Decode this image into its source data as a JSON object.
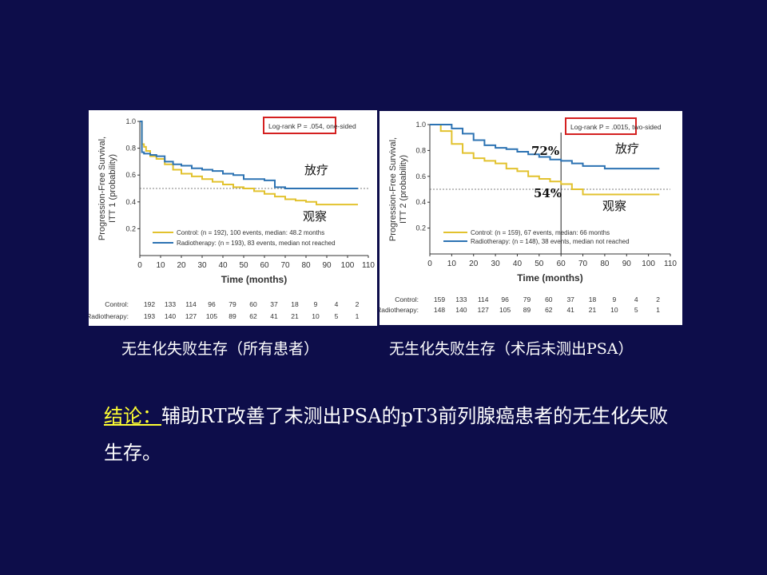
{
  "slide": {
    "caption_left": "无生化失败生存（所有患者）",
    "caption_right": "无生化失败生存（术后未测出PSA）",
    "conclusion_label": "结论：",
    "conclusion_text": "辅助RT改善了未测出PSA的pT3前列腺癌患者的无生化失败生存。"
  },
  "colors": {
    "background": "#0d0d4a",
    "control": "#e2c22e",
    "radiotherapy": "#2d73b3",
    "logrank_box": "#d42020",
    "conclusion_label": "#ffff33"
  },
  "chart_data": [
    {
      "type": "line",
      "step": true,
      "ylabel": "Progression-Free Survival, ITT 1 (probability)",
      "xlabel": "Time (months)",
      "xlim": [
        0,
        110
      ],
      "ylim": [
        0,
        1.0
      ],
      "xticks": [
        0,
        10,
        20,
        30,
        40,
        50,
        60,
        70,
        80,
        90,
        100,
        110
      ],
      "yticks": [
        0.2,
        0.4,
        0.6,
        0.8,
        1.0
      ],
      "reference_line_y": 0.5,
      "annotation": "Log-rank P = .054, one-sided",
      "overlay_labels": {
        "radiotherapy": "放疗",
        "control": "观察"
      },
      "series": [
        {
          "name": "Control",
          "key": "control",
          "legend": "Control: (n = 192), 100 events, median: 48.2 months",
          "x": [
            0,
            1,
            2,
            3,
            5,
            8,
            12,
            16,
            20,
            25,
            30,
            35,
            40,
            45,
            50,
            55,
            60,
            65,
            70,
            75,
            80,
            85,
            90,
            95,
            100,
            105
          ],
          "y": [
            1.0,
            0.83,
            0.81,
            0.78,
            0.74,
            0.72,
            0.68,
            0.64,
            0.61,
            0.59,
            0.57,
            0.55,
            0.53,
            0.51,
            0.5,
            0.48,
            0.46,
            0.44,
            0.42,
            0.41,
            0.4,
            0.38,
            0.38,
            0.38,
            0.38,
            0.38
          ]
        },
        {
          "name": "Radiotherapy",
          "key": "radiotherapy",
          "legend": "Radiotherapy: (n = 193), 83 events, median not reached",
          "x": [
            0,
            1,
            2,
            5,
            8,
            12,
            16,
            20,
            25,
            30,
            35,
            40,
            45,
            50,
            55,
            60,
            65,
            70,
            80,
            90,
            100,
            105
          ],
          "y": [
            1.0,
            0.77,
            0.76,
            0.75,
            0.74,
            0.7,
            0.68,
            0.67,
            0.65,
            0.64,
            0.63,
            0.61,
            0.6,
            0.57,
            0.57,
            0.56,
            0.51,
            0.5,
            0.5,
            0.5,
            0.5,
            0.5
          ]
        }
      ],
      "at_risk": {
        "times": [
          0,
          10,
          20,
          30,
          40,
          50,
          60,
          70,
          80,
          90,
          100,
          110
        ],
        "rows": [
          {
            "label": "Control:",
            "values": [
              "192",
              "133",
              "114",
              "96",
              "79",
              "60",
              "37",
              "18",
              "9",
              "4",
              "2"
            ]
          },
          {
            "label": "Radiotherapy:",
            "values": [
              "193",
              "140",
              "127",
              "105",
              "89",
              "62",
              "41",
              "21",
              "10",
              "5",
              "1"
            ]
          }
        ]
      }
    },
    {
      "type": "line",
      "step": true,
      "ylabel": "Progression-Free Survival, ITT 2 (probability)",
      "xlabel": "Time (months)",
      "xlim": [
        0,
        110
      ],
      "ylim": [
        0,
        1.0
      ],
      "xticks": [
        0,
        10,
        20,
        30,
        40,
        50,
        60,
        70,
        80,
        90,
        100,
        110
      ],
      "yticks": [
        0.2,
        0.4,
        0.6,
        0.8,
        1.0
      ],
      "reference_line_y": 0.5,
      "reference_line_x": 60,
      "annotation": "Log-rank P = .0015, two-sided",
      "overlay_labels": {
        "radiotherapy": "放疗",
        "control": "观察",
        "rt_60": "72%",
        "control_60": "54%"
      },
      "series": [
        {
          "name": "Control",
          "key": "control",
          "legend": "Control: (n = 159), 67 events, median: 66 months",
          "x": [
            0,
            5,
            10,
            15,
            20,
            25,
            30,
            35,
            40,
            45,
            50,
            55,
            60,
            65,
            70,
            75,
            80,
            85,
            90,
            95,
            100,
            105
          ],
          "y": [
            1.0,
            0.95,
            0.85,
            0.78,
            0.74,
            0.72,
            0.7,
            0.66,
            0.64,
            0.6,
            0.58,
            0.56,
            0.54,
            0.5,
            0.46,
            0.46,
            0.46,
            0.46,
            0.46,
            0.46,
            0.46,
            0.46
          ]
        },
        {
          "name": "Radiotherapy",
          "key": "radiotherapy",
          "legend": "Radiotherapy: (n = 148), 38 events, median not reached",
          "x": [
            0,
            5,
            10,
            15,
            20,
            25,
            30,
            35,
            40,
            45,
            50,
            55,
            60,
            65,
            70,
            80,
            90,
            100,
            105
          ],
          "y": [
            1.0,
            1.0,
            0.97,
            0.93,
            0.88,
            0.84,
            0.82,
            0.81,
            0.79,
            0.77,
            0.75,
            0.73,
            0.72,
            0.7,
            0.68,
            0.66,
            0.66,
            0.66,
            0.66
          ]
        }
      ],
      "at_risk": {
        "times": [
          0,
          10,
          20,
          30,
          40,
          50,
          60,
          70,
          80,
          90,
          100,
          110
        ],
        "rows": [
          {
            "label": "Control:",
            "values": [
              "159",
              "133",
              "114",
              "96",
              "79",
              "60",
              "37",
              "18",
              "9",
              "4",
              "2"
            ]
          },
          {
            "label": "Radiotherapy:",
            "values": [
              "148",
              "140",
              "127",
              "105",
              "89",
              "62",
              "41",
              "21",
              "10",
              "5",
              "1"
            ]
          }
        ]
      }
    }
  ]
}
